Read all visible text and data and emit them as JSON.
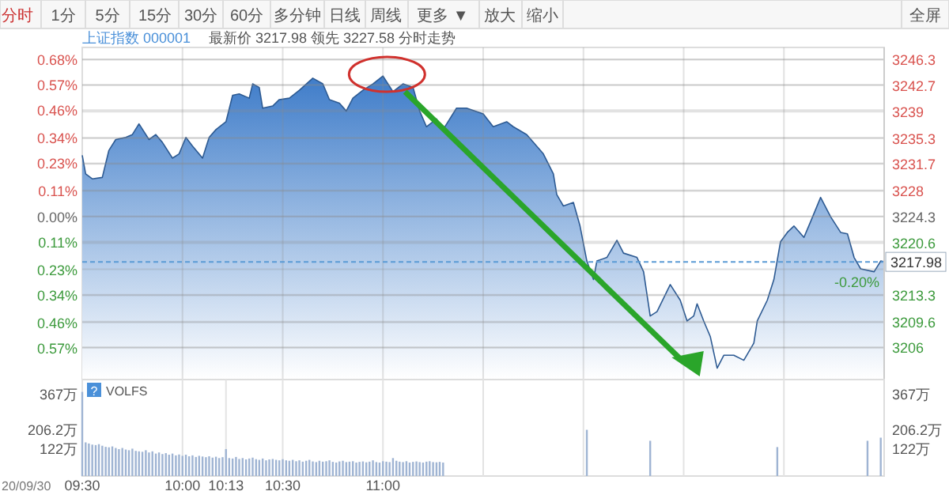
{
  "chart_data": [
    {
      "type": "other",
      "annotations": [
        "分时",
        "1分",
        "5分",
        "15分",
        "30分",
        "60分",
        "多分钟",
        "日线",
        "周线",
        "更多 ▼",
        "放大",
        "缩小",
        "全屏"
      ]
    },
    {
      "type": "area",
      "title": "上证指数 000001",
      "subtitle": "最新价 3217.98 领先 3227.58 分时走势",
      "xlim": [
        9.5,
        13.5
      ],
      "xticks": [
        {
          "value": 10,
          "label": null
        },
        {
          "value": 10.5,
          "label": null
        },
        {
          "value": 11,
          "label": null
        },
        {
          "value": 11.5,
          "label": null
        },
        {
          "value": 12,
          "label": null
        },
        {
          "value": 12.5,
          "label": null
        },
        {
          "value": 13,
          "label": null
        }
      ],
      "ylim": [
        3201.5,
        3248.0
      ],
      "yticks": [
        3206.0,
        3209.6,
        3213.3,
        3220.6,
        3224.3,
        3228.0,
        3231.7,
        3235.3,
        3239.0,
        3242.7,
        3246.3
      ],
      "y2lim": [
        -0.708,
        0.732
      ],
      "y2ticks": [
        {
          "value": -0.57,
          "label": "0.57%"
        },
        {
          "value": -0.46,
          "label": "0.46%"
        },
        {
          "value": -0.34,
          "label": "0.34%"
        },
        {
          "value": -0.23,
          "label": "0.23%"
        },
        {
          "value": -0.11,
          "label": "0.11%"
        },
        {
          "value": 0,
          "label": "0.00%"
        },
        {
          "value": 0.11,
          "label": "0.11%"
        },
        {
          "value": 0.23,
          "label": "0.23%"
        },
        {
          "value": 0.34,
          "label": "0.34%"
        },
        {
          "value": 0.46,
          "label": "0.46%"
        },
        {
          "value": 0.57,
          "label": "0.57%"
        },
        {
          "value": 0.68,
          "label": "0.68%"
        }
      ],
      "tick_labels": "y",
      "grid": true,
      "ref_lines": [
        {
          "axis": "y",
          "value": 3217.98,
          "label": "3217.98",
          "color": "#5b9bd5",
          "line_style": "dashed"
        }
      ],
      "annotations": [
        {
          "text": "-0.20%",
          "x": 13.5,
          "y": 3217.98
        }
      ],
      "series": [
        {
          "color": "#2d5a92",
          "x": [
            9.5,
            9.517,
            9.55,
            9.6,
            9.633,
            9.667,
            9.717,
            9.75,
            9.783,
            9.833,
            9.867,
            9.9,
            9.95,
            9.983,
            10.017,
            10.05,
            10.1,
            10.133,
            10.167,
            10.217,
            10.25,
            10.283,
            10.333,
            10.35,
            10.383,
            10.4,
            10.45,
            10.483,
            10.533,
            10.583,
            10.65,
            10.7,
            10.733,
            10.783,
            10.817,
            10.85,
            10.9,
            10.95,
            11,
            11.05,
            11.1,
            11.15,
            11.183,
            11.217,
            11.267,
            11.3,
            11.367,
            11.417,
            11.5,
            11.55,
            11.617,
            11.65,
            11.717,
            11.8,
            11.85,
            11.867,
            11.9,
            11.95,
            11.983,
            12.017,
            12.05,
            12.067,
            12.117,
            12.167,
            12.2,
            12.267,
            12.3,
            12.333,
            12.367,
            12.433,
            12.483,
            12.517,
            12.55,
            12.567,
            12.6,
            12.633,
            12.667,
            12.7,
            12.75,
            12.8,
            12.85,
            12.867,
            12.917,
            12.95,
            12.983,
            13.017,
            13.05,
            13.1,
            13.133,
            13.183,
            13.233,
            13.283,
            13.317,
            13.35,
            13.383,
            13.45,
            13.483,
            13.5
          ],
          "values": [
            3232.9,
            3230.3,
            3229.6,
            3229.8,
            3233.6,
            3235.1,
            3235.4,
            3235.8,
            3237.3,
            3235.1,
            3235.8,
            3234.7,
            3232.5,
            3233.1,
            3235.4,
            3234.2,
            3232.5,
            3235.4,
            3236.5,
            3237.6,
            3241.3,
            3241.5,
            3240.9,
            3242.9,
            3242.4,
            3239.5,
            3239.8,
            3240.7,
            3240.9,
            3242.0,
            3243.7,
            3242.9,
            3240.7,
            3240.2,
            3239.1,
            3240.9,
            3242.0,
            3242.9,
            3244.0,
            3241.8,
            3242.9,
            3242.4,
            3239.1,
            3236.9,
            3238.0,
            3236.5,
            3239.5,
            3239.5,
            3238.7,
            3236.9,
            3237.6,
            3236.9,
            3235.8,
            3233.1,
            3230.3,
            3227.4,
            3225.8,
            3226.3,
            3223.0,
            3218.1,
            3215.5,
            3218.1,
            3218.6,
            3221.0,
            3219.2,
            3218.6,
            3216.6,
            3210.4,
            3211.0,
            3214.8,
            3212.6,
            3209.7,
            3210.4,
            3212.1,
            3209.7,
            3207.5,
            3203.1,
            3204.9,
            3204.9,
            3204.2,
            3206.6,
            3209.7,
            3212.6,
            3215.5,
            3220.8,
            3222.1,
            3223.0,
            3221.4,
            3223.6,
            3227.0,
            3224.3,
            3222.1,
            3221.9,
            3218.6,
            3217.0,
            3216.6,
            3218.1,
            3217.98
          ]
        }
      ]
    },
    {
      "type": "bar",
      "color": "#9fb4d3",
      "xlim": [
        9.5,
        13.5
      ],
      "xticks": [
        {
          "value": 9.5,
          "label": "09:30"
        },
        {
          "value": 10,
          "label": "10:00"
        },
        {
          "value": 10.217,
          "label": "10:13"
        },
        {
          "value": 10.5,
          "label": "10:30"
        },
        {
          "value": 11,
          "label": "11:00"
        },
        {
          "value": 11.5,
          "label": null
        },
        {
          "value": 12,
          "label": null
        },
        {
          "value": 12.5,
          "label": null
        },
        {
          "value": 13,
          "label": null
        }
      ],
      "ylim": [
        0,
        430
      ],
      "yticks": [
        {
          "value": 122,
          "label": "122万"
        },
        {
          "value": 206.2,
          "label": "206.2万"
        },
        {
          "value": 367,
          "label": "367万"
        }
      ],
      "y2lim": [
        0,
        430
      ],
      "y2ticks": [
        {
          "value": 122,
          "label": "122万"
        },
        {
          "value": 206.2,
          "label": "206.2万"
        },
        {
          "value": 367,
          "label": "367万"
        }
      ],
      "grid": "x",
      "annotations": [
        "?",
        "VOLFS",
        "20/09/30"
      ],
      "x": [
        9.5,
        9.517,
        9.533,
        9.55,
        9.567,
        9.583,
        9.6,
        9.617,
        9.633,
        9.65,
        9.667,
        9.683,
        9.7,
        9.717,
        9.733,
        9.75,
        9.767,
        9.783,
        9.8,
        9.817,
        9.833,
        9.85,
        9.867,
        9.883,
        9.9,
        9.917,
        9.933,
        9.95,
        9.967,
        9.983,
        10,
        10.017,
        10.033,
        10.05,
        10.067,
        10.083,
        10.1,
        10.117,
        10.133,
        10.15,
        10.167,
        10.183,
        10.2,
        10.217,
        10.233,
        10.25,
        10.267,
        10.283,
        10.3,
        10.317,
        10.333,
        10.35,
        10.367,
        10.383,
        10.4,
        10.417,
        10.433,
        10.45,
        10.467,
        10.483,
        10.5,
        10.517,
        10.533,
        10.55,
        10.567,
        10.583,
        10.6,
        10.617,
        10.633,
        10.65,
        10.667,
        10.683,
        10.7,
        10.717,
        10.733,
        10.75,
        10.767,
        10.783,
        10.8,
        10.817,
        10.833,
        10.85,
        10.867,
        10.883,
        10.9,
        10.917,
        10.933,
        10.95,
        10.967,
        10.983,
        11,
        11.017,
        11.033,
        11.05,
        11.067,
        11.083,
        11.1,
        11.117,
        11.133,
        11.15,
        11.167,
        11.183,
        11.2,
        11.217,
        11.233,
        11.25,
        11.267,
        11.283,
        11.3,
        12.017,
        12.333,
        12.967,
        13.417,
        13.483
      ],
      "values": [
        375,
        150,
        145,
        140,
        138,
        142,
        135,
        130,
        128,
        132,
        125,
        120,
        125,
        118,
        115,
        122,
        112,
        110,
        108,
        115,
        105,
        110,
        100,
        105,
        98,
        102,
        95,
        100,
        92,
        96,
        90,
        95,
        88,
        92,
        85,
        90,
        87,
        84,
        88,
        82,
        86,
        80,
        84,
        120,
        80,
        78,
        85,
        76,
        80,
        74,
        78,
        82,
        75,
        72,
        78,
        70,
        74,
        76,
        72,
        70,
        75,
        70,
        68,
        72,
        66,
        70,
        64,
        68,
        72,
        65,
        62,
        68,
        64,
        66,
        70,
        63,
        60,
        65,
        68,
        62,
        64,
        66,
        60,
        63,
        65,
        61,
        64,
        70,
        62,
        60,
        66,
        64,
        62,
        80,
        68,
        64,
        62,
        66,
        60,
        63,
        65,
        62,
        60,
        64,
        66,
        62,
        61,
        63,
        60,
        206,
        157,
        129,
        157,
        171
      ]
    }
  ]
}
